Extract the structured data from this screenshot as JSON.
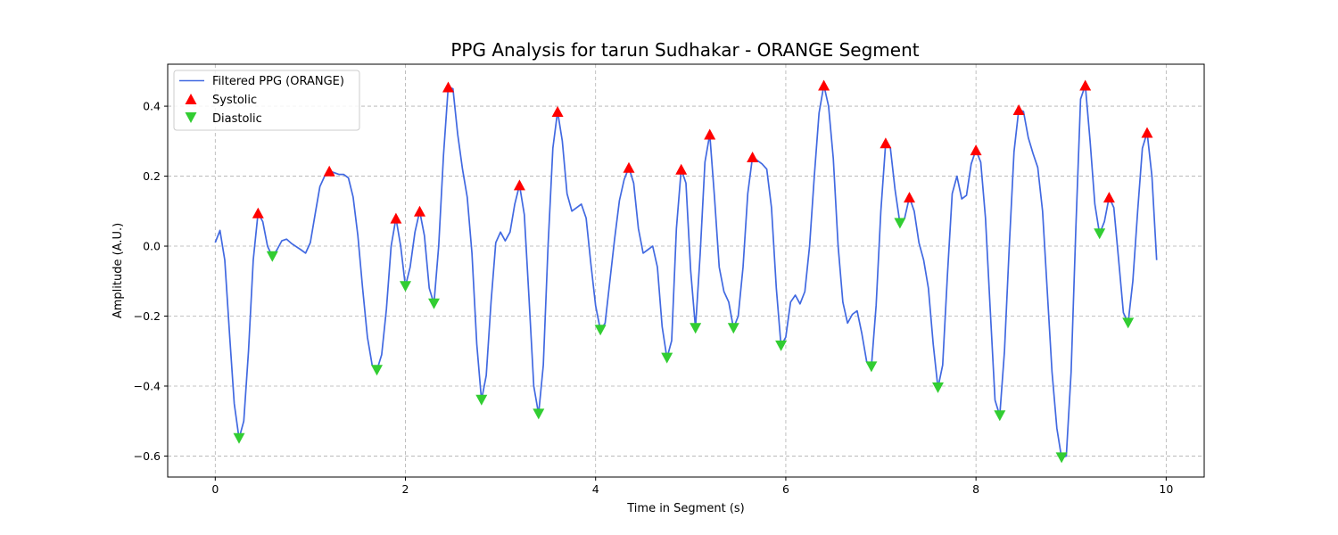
{
  "chart_data": {
    "type": "line",
    "title": "PPG Analysis for tarun Sudhakar - ORANGE Segment",
    "xlabel": "Time in Segment (s)",
    "ylabel": "Amplitude (A.U.)",
    "xlim": [
      -0.5,
      10.4
    ],
    "ylim": [
      -0.66,
      0.52
    ],
    "xticks": [
      0,
      2,
      4,
      6,
      8,
      10
    ],
    "yticks": [
      -0.6,
      -0.4,
      -0.2,
      0.0,
      0.2,
      0.4
    ],
    "xtick_labels": [
      "0",
      "2",
      "4",
      "6",
      "8",
      "10"
    ],
    "ytick_labels": [
      "−0.6",
      "−0.4",
      "−0.2",
      "0.0",
      "0.2",
      "0.4"
    ],
    "grid": true,
    "legend_position": "top-left",
    "series": [
      {
        "name": "Filtered PPG (ORANGE)",
        "kind": "line",
        "color": "#4169e1",
        "points": [
          [
            0.0,
            0.01
          ],
          [
            0.05,
            0.045
          ],
          [
            0.1,
            -0.04
          ],
          [
            0.15,
            -0.25
          ],
          [
            0.2,
            -0.45
          ],
          [
            0.25,
            -0.55
          ],
          [
            0.3,
            -0.5
          ],
          [
            0.35,
            -0.3
          ],
          [
            0.4,
            -0.04
          ],
          [
            0.45,
            0.095
          ],
          [
            0.5,
            0.07
          ],
          [
            0.55,
            0.0
          ],
          [
            0.6,
            -0.03
          ],
          [
            0.65,
            -0.01
          ],
          [
            0.7,
            0.015
          ],
          [
            0.75,
            0.02
          ],
          [
            0.8,
            0.008
          ],
          [
            0.9,
            -0.01
          ],
          [
            0.95,
            -0.02
          ],
          [
            1.0,
            0.01
          ],
          [
            1.05,
            0.09
          ],
          [
            1.1,
            0.17
          ],
          [
            1.15,
            0.2
          ],
          [
            1.2,
            0.215
          ],
          [
            1.3,
            0.205
          ],
          [
            1.35,
            0.205
          ],
          [
            1.4,
            0.195
          ],
          [
            1.45,
            0.14
          ],
          [
            1.5,
            0.03
          ],
          [
            1.55,
            -0.12
          ],
          [
            1.6,
            -0.26
          ],
          [
            1.65,
            -0.34
          ],
          [
            1.7,
            -0.355
          ],
          [
            1.75,
            -0.31
          ],
          [
            1.8,
            -0.18
          ],
          [
            1.85,
            -0.0
          ],
          [
            1.9,
            0.08
          ],
          [
            1.95,
            0.0
          ],
          [
            2.0,
            -0.115
          ],
          [
            2.05,
            -0.06
          ],
          [
            2.1,
            0.04
          ],
          [
            2.15,
            0.1
          ],
          [
            2.2,
            0.03
          ],
          [
            2.25,
            -0.12
          ],
          [
            2.3,
            -0.165
          ],
          [
            2.35,
            0.0
          ],
          [
            2.4,
            0.26
          ],
          [
            2.45,
            0.455
          ],
          [
            2.5,
            0.45
          ],
          [
            2.55,
            0.32
          ],
          [
            2.6,
            0.22
          ],
          [
            2.65,
            0.14
          ],
          [
            2.7,
            -0.02
          ],
          [
            2.75,
            -0.28
          ],
          [
            2.8,
            -0.44
          ],
          [
            2.85,
            -0.37
          ],
          [
            2.9,
            -0.16
          ],
          [
            2.95,
            0.01
          ],
          [
            3.0,
            0.04
          ],
          [
            3.05,
            0.015
          ],
          [
            3.1,
            0.04
          ],
          [
            3.15,
            0.12
          ],
          [
            3.2,
            0.175
          ],
          [
            3.25,
            0.09
          ],
          [
            3.3,
            -0.15
          ],
          [
            3.35,
            -0.4
          ],
          [
            3.4,
            -0.48
          ],
          [
            3.45,
            -0.34
          ],
          [
            3.5,
            0.0
          ],
          [
            3.55,
            0.28
          ],
          [
            3.6,
            0.385
          ],
          [
            3.65,
            0.3
          ],
          [
            3.7,
            0.15
          ],
          [
            3.75,
            0.1
          ],
          [
            3.8,
            0.11
          ],
          [
            3.85,
            0.12
          ],
          [
            3.9,
            0.08
          ],
          [
            3.95,
            -0.05
          ],
          [
            4.0,
            -0.17
          ],
          [
            4.05,
            -0.24
          ],
          [
            4.1,
            -0.22
          ],
          [
            4.15,
            -0.1
          ],
          [
            4.2,
            0.02
          ],
          [
            4.25,
            0.13
          ],
          [
            4.3,
            0.19
          ],
          [
            4.35,
            0.225
          ],
          [
            4.4,
            0.18
          ],
          [
            4.45,
            0.05
          ],
          [
            4.5,
            -0.02
          ],
          [
            4.55,
            -0.01
          ],
          [
            4.6,
            0.0
          ],
          [
            4.65,
            -0.06
          ],
          [
            4.7,
            -0.23
          ],
          [
            4.75,
            -0.32
          ],
          [
            4.8,
            -0.27
          ],
          [
            4.85,
            0.05
          ],
          [
            4.9,
            0.22
          ],
          [
            4.95,
            0.18
          ],
          [
            5.0,
            -0.07
          ],
          [
            5.05,
            -0.235
          ],
          [
            5.1,
            -0.02
          ],
          [
            5.15,
            0.24
          ],
          [
            5.2,
            0.32
          ],
          [
            5.25,
            0.14
          ],
          [
            5.3,
            -0.06
          ],
          [
            5.35,
            -0.13
          ],
          [
            5.4,
            -0.16
          ],
          [
            5.45,
            -0.235
          ],
          [
            5.5,
            -0.2
          ],
          [
            5.55,
            -0.06
          ],
          [
            5.6,
            0.15
          ],
          [
            5.65,
            0.255
          ],
          [
            5.7,
            0.245
          ],
          [
            5.75,
            0.235
          ],
          [
            5.8,
            0.22
          ],
          [
            5.85,
            0.11
          ],
          [
            5.9,
            -0.12
          ],
          [
            5.95,
            -0.285
          ],
          [
            6.0,
            -0.26
          ],
          [
            6.05,
            -0.16
          ],
          [
            6.1,
            -0.14
          ],
          [
            6.15,
            -0.165
          ],
          [
            6.2,
            -0.13
          ],
          [
            6.25,
            0.0
          ],
          [
            6.3,
            0.2
          ],
          [
            6.35,
            0.38
          ],
          [
            6.4,
            0.46
          ],
          [
            6.45,
            0.4
          ],
          [
            6.5,
            0.25
          ],
          [
            6.55,
            0.0
          ],
          [
            6.6,
            -0.16
          ],
          [
            6.65,
            -0.22
          ],
          [
            6.7,
            -0.195
          ],
          [
            6.75,
            -0.185
          ],
          [
            6.8,
            -0.25
          ],
          [
            6.85,
            -0.33
          ],
          [
            6.9,
            -0.345
          ],
          [
            6.95,
            -0.17
          ],
          [
            7.0,
            0.1
          ],
          [
            7.05,
            0.295
          ],
          [
            7.1,
            0.28
          ],
          [
            7.15,
            0.16
          ],
          [
            7.2,
            0.065
          ],
          [
            7.25,
            0.08
          ],
          [
            7.3,
            0.14
          ],
          [
            7.35,
            0.1
          ],
          [
            7.4,
            0.01
          ],
          [
            7.45,
            -0.04
          ],
          [
            7.5,
            -0.12
          ],
          [
            7.55,
            -0.28
          ],
          [
            7.6,
            -0.405
          ],
          [
            7.65,
            -0.34
          ],
          [
            7.7,
            -0.08
          ],
          [
            7.75,
            0.15
          ],
          [
            7.8,
            0.2
          ],
          [
            7.85,
            0.135
          ],
          [
            7.9,
            0.145
          ],
          [
            7.95,
            0.235
          ],
          [
            8.0,
            0.275
          ],
          [
            8.05,
            0.24
          ],
          [
            8.1,
            0.08
          ],
          [
            8.15,
            -0.18
          ],
          [
            8.2,
            -0.44
          ],
          [
            8.25,
            -0.485
          ],
          [
            8.3,
            -0.3
          ],
          [
            8.35,
            0.0
          ],
          [
            8.4,
            0.27
          ],
          [
            8.45,
            0.39
          ],
          [
            8.5,
            0.385
          ],
          [
            8.55,
            0.31
          ],
          [
            8.6,
            0.265
          ],
          [
            8.65,
            0.225
          ],
          [
            8.7,
            0.1
          ],
          [
            8.75,
            -0.13
          ],
          [
            8.8,
            -0.36
          ],
          [
            8.85,
            -0.52
          ],
          [
            8.9,
            -0.605
          ],
          [
            8.95,
            -0.6
          ],
          [
            9.0,
            -0.36
          ],
          [
            9.05,
            0.05
          ],
          [
            9.1,
            0.42
          ],
          [
            9.15,
            0.46
          ],
          [
            9.2,
            0.3
          ],
          [
            9.25,
            0.12
          ],
          [
            9.3,
            0.035
          ],
          [
            9.35,
            0.07
          ],
          [
            9.4,
            0.14
          ],
          [
            9.45,
            0.11
          ],
          [
            9.5,
            -0.04
          ],
          [
            9.55,
            -0.19
          ],
          [
            9.6,
            -0.22
          ],
          [
            9.65,
            -0.1
          ],
          [
            9.7,
            0.1
          ],
          [
            9.75,
            0.28
          ],
          [
            9.8,
            0.325
          ],
          [
            9.85,
            0.2
          ],
          [
            9.9,
            -0.04
          ]
        ]
      },
      {
        "name": "Systolic",
        "kind": "marker-up",
        "color": "#ff0000",
        "points": [
          [
            0.45,
            0.095
          ],
          [
            1.2,
            0.215
          ],
          [
            1.9,
            0.08
          ],
          [
            2.15,
            0.1
          ],
          [
            2.45,
            0.455
          ],
          [
            3.2,
            0.175
          ],
          [
            3.6,
            0.385
          ],
          [
            4.35,
            0.225
          ],
          [
            4.9,
            0.22
          ],
          [
            5.2,
            0.32
          ],
          [
            5.65,
            0.255
          ],
          [
            6.4,
            0.46
          ],
          [
            7.05,
            0.295
          ],
          [
            7.3,
            0.14
          ],
          [
            8.0,
            0.275
          ],
          [
            8.45,
            0.39
          ],
          [
            9.15,
            0.46
          ],
          [
            9.4,
            0.14
          ],
          [
            9.8,
            0.325
          ]
        ]
      },
      {
        "name": "Diastolic",
        "kind": "marker-down",
        "color": "#32cd32",
        "points": [
          [
            0.25,
            -0.55
          ],
          [
            0.6,
            -0.03
          ],
          [
            1.7,
            -0.355
          ],
          [
            2.0,
            -0.115
          ],
          [
            2.3,
            -0.165
          ],
          [
            2.8,
            -0.44
          ],
          [
            3.4,
            -0.48
          ],
          [
            4.05,
            -0.24
          ],
          [
            4.75,
            -0.32
          ],
          [
            5.05,
            -0.235
          ],
          [
            5.45,
            -0.235
          ],
          [
            5.95,
            -0.285
          ],
          [
            6.9,
            -0.345
          ],
          [
            7.2,
            0.065
          ],
          [
            7.6,
            -0.405
          ],
          [
            8.25,
            -0.485
          ],
          [
            8.9,
            -0.605
          ],
          [
            9.3,
            0.035
          ],
          [
            9.6,
            -0.22
          ]
        ]
      }
    ]
  }
}
